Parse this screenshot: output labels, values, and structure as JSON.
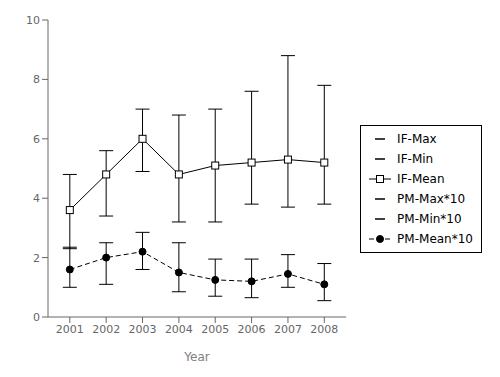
{
  "chart_data": {
    "type": "line",
    "x": [
      2001,
      2002,
      2003,
      2004,
      2005,
      2006,
      2007,
      2008
    ],
    "xlim": [
      2000.4,
      2008.6
    ],
    "xticks": [
      2001,
      2002,
      2003,
      2004,
      2005,
      2006,
      2007,
      2008
    ],
    "ylim": [
      0,
      10
    ],
    "yticks": [
      0,
      2,
      4,
      6,
      8,
      10
    ],
    "xlabel": "Year",
    "legend": "right",
    "grid": false,
    "series": [
      {
        "name": "IF-Mean",
        "color": "#000000",
        "marker": "square",
        "line_style": "solid",
        "values": [
          3.6,
          4.8,
          6.0,
          4.8,
          5.1,
          5.2,
          5.3,
          5.2
        ],
        "max": {
          "name": "IF-Max",
          "values": [
            4.8,
            5.6,
            7.0,
            6.8,
            7.0,
            7.6,
            8.8,
            7.8
          ]
        },
        "min": {
          "name": "IF-Min",
          "values": [
            2.3,
            3.4,
            4.9,
            3.2,
            3.2,
            3.8,
            3.7,
            3.8
          ]
        }
      },
      {
        "name": "PM-Mean*10",
        "color": "#000000",
        "marker": "circle",
        "line_style": "dashed",
        "values": [
          1.6,
          2.0,
          2.2,
          1.5,
          1.25,
          1.2,
          1.45,
          1.1
        ],
        "max": {
          "name": "PM-Max*10",
          "values": [
            2.35,
            2.5,
            2.85,
            2.5,
            1.95,
            1.95,
            2.1,
            1.8
          ]
        },
        "min": {
          "name": "PM-Min*10",
          "values": [
            1.0,
            1.1,
            1.6,
            0.85,
            0.7,
            0.65,
            1.0,
            0.55
          ]
        }
      }
    ]
  }
}
